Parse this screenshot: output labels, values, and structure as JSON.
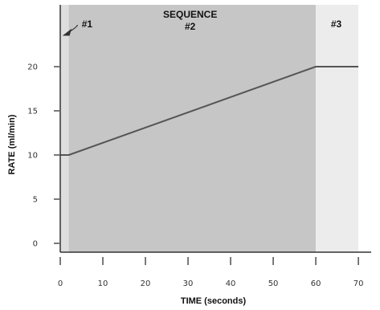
{
  "chart_data": {
    "type": "line",
    "xlabel": "TIME (seconds)",
    "ylabel": "RATE (ml/min)",
    "xlim": [
      0,
      73
    ],
    "ylim": [
      -1,
      27
    ],
    "x_ticks": [
      0,
      10,
      20,
      30,
      40,
      50,
      60,
      70
    ],
    "x_tick_labels": [
      "0",
      "10",
      "20",
      "30",
      "40",
      "50",
      "60",
      "70"
    ],
    "y_ticks": [
      0,
      5,
      10,
      15,
      20
    ],
    "y_tick_labels": [
      "0",
      "5",
      "10",
      "15",
      "20"
    ],
    "grid": false,
    "series": [
      {
        "x": [
          0,
          2,
          60,
          70
        ],
        "y": [
          10,
          10,
          20,
          20
        ]
      }
    ],
    "regions": [
      {
        "label": "#1",
        "x_start": 0,
        "x_end": 2,
        "color": "#dedede"
      },
      {
        "label": "SEQUENCE\n#2",
        "x_start": 2,
        "x_end": 60,
        "color": "#c6c6c6"
      },
      {
        "label": "#3",
        "x_start": 60,
        "x_end": 70,
        "color": "#ececec"
      }
    ],
    "colors": {
      "line": "#555555",
      "axis": "#333333",
      "arrow": "#333333"
    }
  }
}
